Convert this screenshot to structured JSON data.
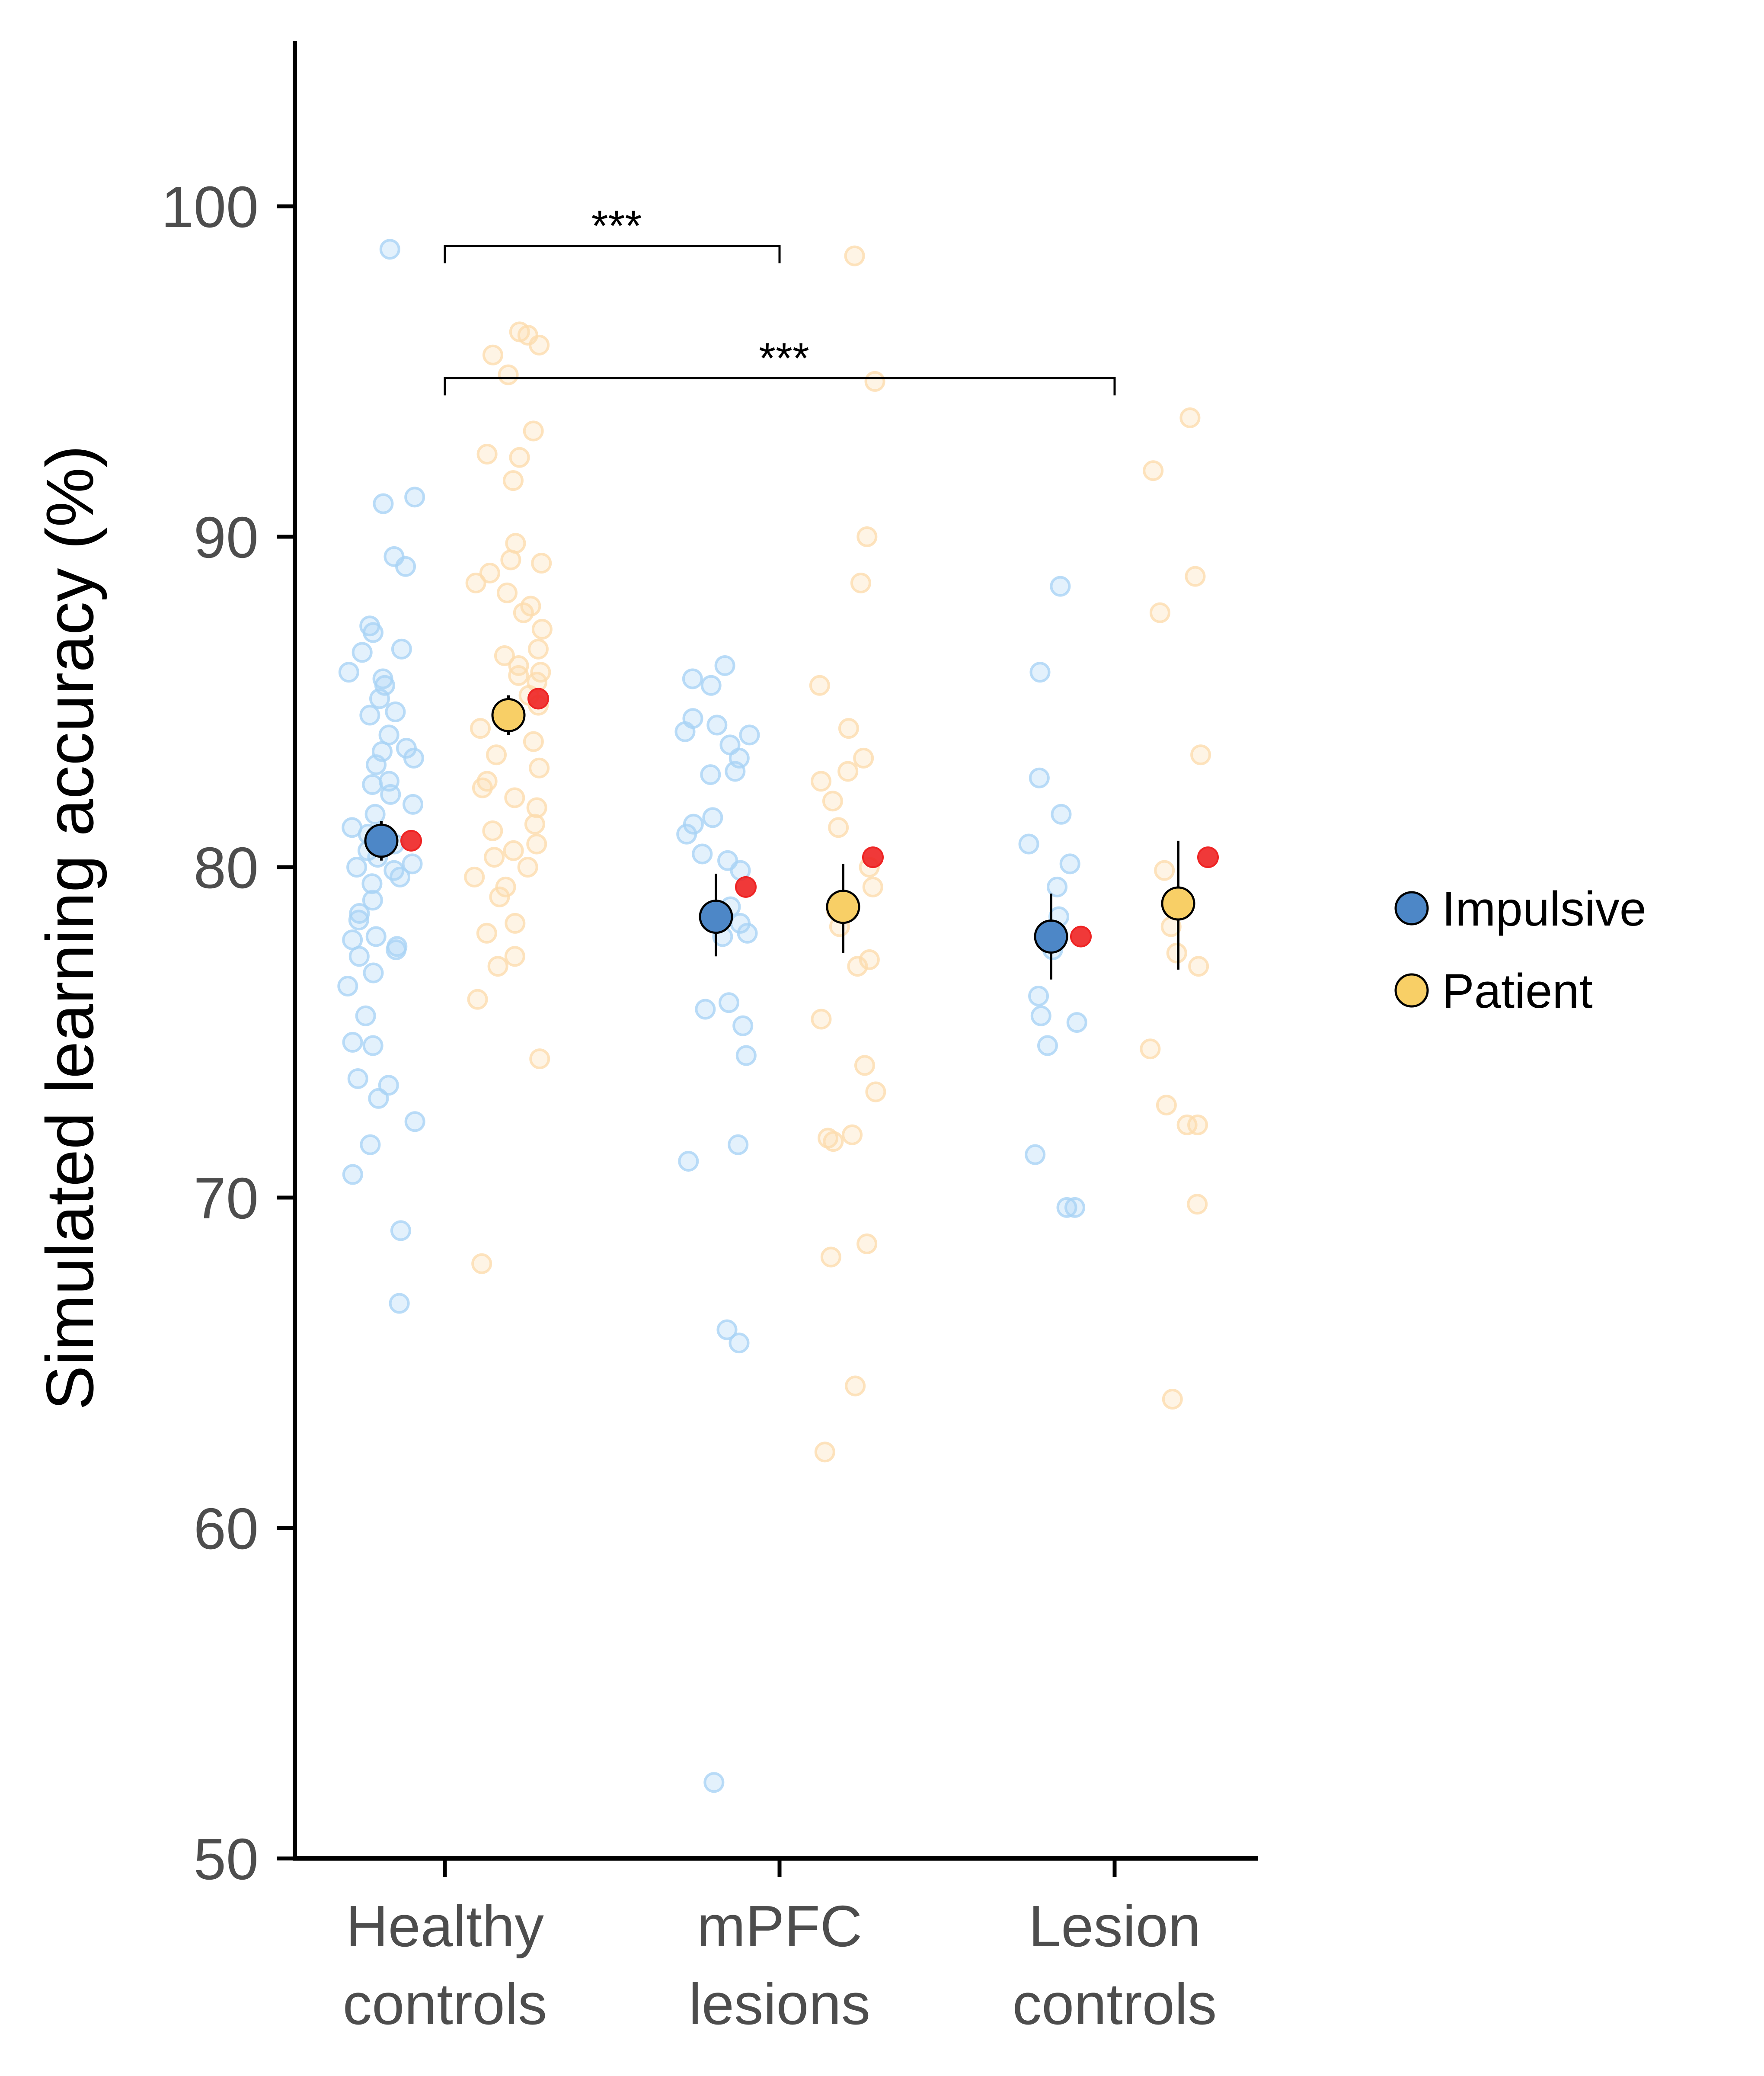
{
  "chart_data": {
    "type": "scatter",
    "title": "",
    "xlabel": "",
    "ylabel": "Simulated learning accuracy (%)",
    "ylim": [
      50,
      105
    ],
    "yticks": [
      50,
      60,
      70,
      80,
      90,
      100
    ],
    "categories": [
      {
        "line1": "Healthy",
        "line2": "controls"
      },
      {
        "line1": "mPFC",
        "line2": "lesions"
      },
      {
        "line1": "Lesion",
        "line2": "controls"
      }
    ],
    "legend": [
      {
        "name": "Impulsive",
        "color": "#4d87c7"
      },
      {
        "name": "Patient",
        "color": "#f8cf66"
      }
    ],
    "colors": {
      "impulsive_raw": "#a9d3f5",
      "patient_raw": "#fddcae",
      "reference": "#ee2424"
    },
    "series": [
      {
        "name": "Impulsive",
        "summary": [
          {
            "mean": 80.8,
            "lo": 80.2,
            "hi": 81.4,
            "reference": 80.8
          },
          {
            "mean": 78.5,
            "lo": 77.3,
            "hi": 79.8,
            "reference": 79.4
          },
          {
            "mean": 77.9,
            "lo": 76.6,
            "hi": 79.2,
            "reference": 77.9
          }
        ],
        "raw": [
          [
            98.7,
            91.2,
            91.0,
            89.4,
            89.1,
            87.3,
            87.1,
            86.6,
            86.5,
            85.9,
            85.7,
            85.5,
            85.1,
            84.7,
            84.6,
            84.0,
            83.6,
            83.5,
            83.3,
            83.1,
            82.6,
            82.5,
            82.2,
            81.9,
            81.6,
            81.2,
            81.0,
            80.7,
            80.5,
            80.3,
            80.1,
            80.0,
            79.9,
            79.7,
            79.5,
            79.0,
            78.6,
            78.4,
            77.9,
            77.8,
            77.6,
            77.5,
            77.3,
            76.8,
            76.4,
            75.5,
            74.7,
            74.6,
            73.6,
            73.4,
            73.0,
            72.3,
            71.6,
            70.7,
            69.0,
            66.8
          ],
          [
            86.1,
            85.7,
            85.5,
            84.5,
            84.3,
            84.1,
            84.0,
            83.7,
            83.3,
            82.9,
            82.8,
            81.5,
            81.3,
            81.0,
            80.4,
            80.2,
            79.9,
            78.8,
            78.3,
            78.0,
            77.9,
            75.9,
            75.7,
            75.2,
            74.3,
            71.6,
            71.1,
            66.0,
            65.6,
            52.3
          ],
          [
            88.5,
            85.9,
            82.7,
            81.6,
            80.7,
            80.1,
            79.4,
            78.5,
            78.0,
            77.5,
            76.1,
            75.5,
            75.3,
            74.6,
            71.3,
            69.7,
            69.7
          ]
        ]
      },
      {
        "name": "Patient",
        "summary": [
          {
            "mean": 84.6,
            "lo": 84.0,
            "hi": 85.2,
            "reference": 85.1
          },
          {
            "mean": 78.8,
            "lo": 77.4,
            "hi": 80.1,
            "reference": 80.3
          },
          {
            "mean": 78.9,
            "lo": 76.9,
            "hi": 80.8,
            "reference": 80.3
          }
        ],
        "raw": [
          [
            96.2,
            96.1,
            95.8,
            95.5,
            94.9,
            93.2,
            92.5,
            92.4,
            91.7,
            89.8,
            89.3,
            89.2,
            88.9,
            88.6,
            88.3,
            87.9,
            87.7,
            87.2,
            86.6,
            86.4,
            86.1,
            85.9,
            85.8,
            85.6,
            85.2,
            84.9,
            84.6,
            84.2,
            83.8,
            83.4,
            83.0,
            82.6,
            82.4,
            82.1,
            81.8,
            81.3,
            81.1,
            80.7,
            80.5,
            80.3,
            80.0,
            79.7,
            79.4,
            79.1,
            78.3,
            78.0,
            77.3,
            77.0,
            76.0,
            74.2,
            68.0
          ],
          [
            98.5,
            94.7,
            90.0,
            88.6,
            85.5,
            84.2,
            83.3,
            82.9,
            82.6,
            82.0,
            81.2,
            80.0,
            79.4,
            78.7,
            78.2,
            77.2,
            77.0,
            75.4,
            74.0,
            73.2,
            71.9,
            71.8,
            71.7,
            68.6,
            68.2,
            64.3,
            62.3
          ],
          [
            93.6,
            92.0,
            88.8,
            87.7,
            83.4,
            79.9,
            78.2,
            77.4,
            77.0,
            74.5,
            72.8,
            72.2,
            72.2,
            69.8,
            63.9
          ]
        ]
      }
    ],
    "significance": [
      {
        "from": 0,
        "to": 1,
        "label": "***",
        "y": 98.8
      },
      {
        "from": 0,
        "to": 2,
        "label": "***",
        "y": 94.8
      }
    ]
  }
}
